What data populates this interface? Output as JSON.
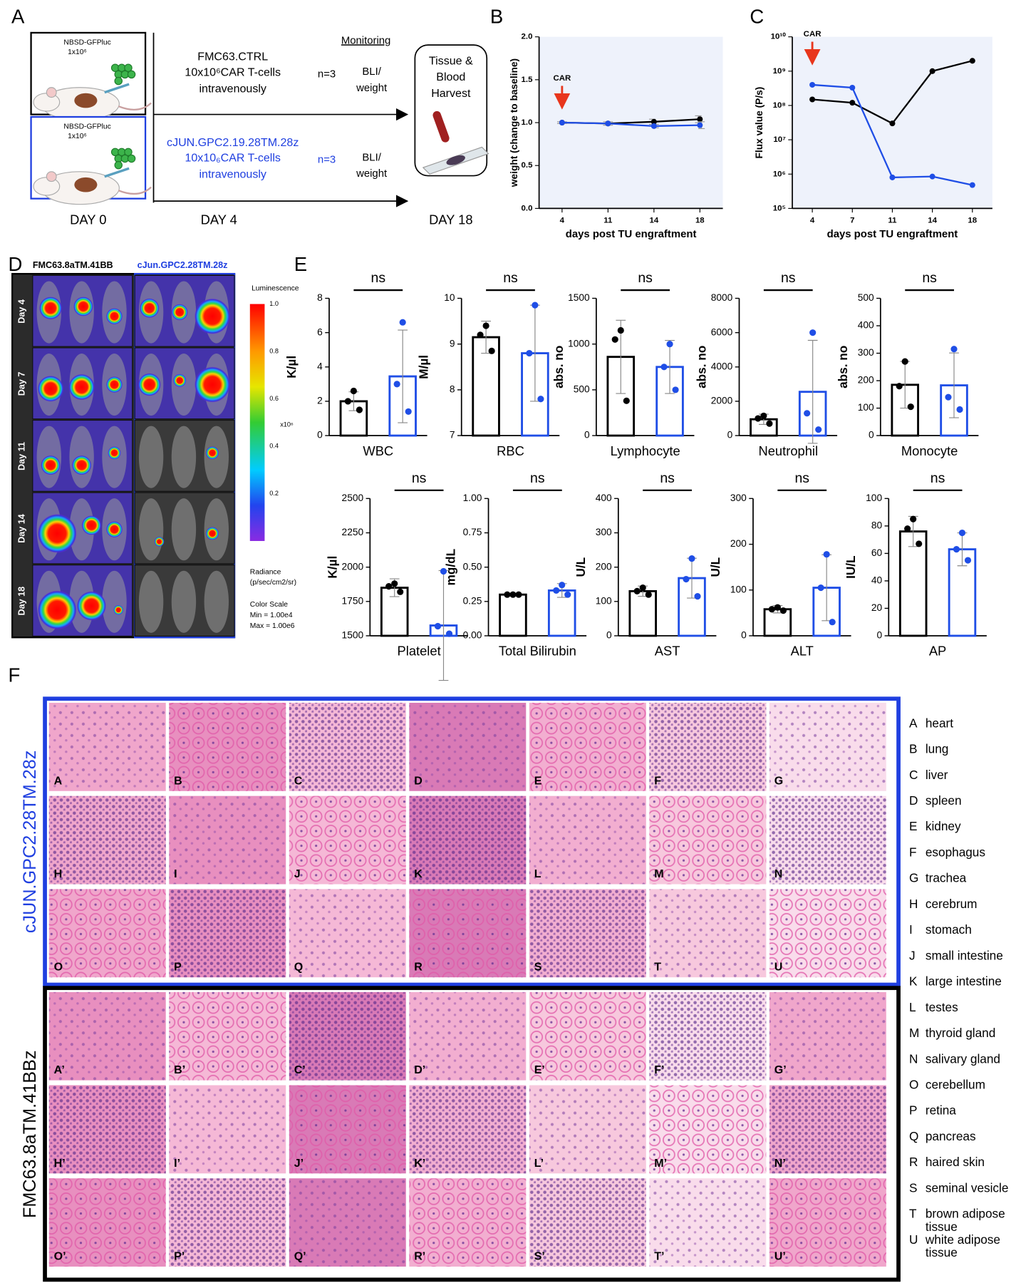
{
  "panels": [
    "A",
    "B",
    "C",
    "D",
    "E",
    "F"
  ],
  "panel_a": {
    "groups": [
      {
        "cells": "NBSD-GFPluc",
        "dose": "1x10⁶",
        "car": "FMC63.CTRL",
        "car_dose": "10x10⁶CAR T-cells",
        "route": "intravenously",
        "n": "n=3",
        "monitoring": [
          "BLI/",
          "weight"
        ]
      },
      {
        "cells": "NBSD-GFPluc",
        "dose": "1x10⁶",
        "car": "cJUN.GPC2.19.28TM.28z",
        "car_dose": "10x10₆CAR T-cells",
        "route": "intravenously",
        "n": "n=3",
        "monitoring": [
          "BLI/",
          "weight"
        ]
      }
    ],
    "monitoring_title": "Monitoring",
    "harvest": [
      "Tissue &",
      "Blood",
      "Harvest"
    ],
    "days": [
      "DAY 0",
      "DAY 4",
      "DAY 18"
    ]
  },
  "chart_data": [
    {
      "type": "line",
      "categories": [
        "4",
        "11",
        "14",
        "18"
      ],
      "xlabel": "days post TU engraftment",
      "ylabel": "weight (change to baseline)",
      "ylim": [
        0,
        2
      ],
      "yticks": [
        {
          "value": 0,
          "label": "0.0"
        },
        {
          "value": 0.5,
          "label": "0.5"
        },
        {
          "value": 1,
          "label": "1.0"
        },
        {
          "value": 1.5,
          "label": "1.5"
        },
        {
          "value": 2,
          "label": "2.0"
        }
      ],
      "annotation": "CAR",
      "series": [
        {
          "color": "#000000",
          "values": [
            1.0,
            0.99,
            1.01,
            1.04
          ],
          "errors": [
            0.01,
            0.02,
            0.03,
            0.04
          ]
        },
        {
          "color": "#1f4ee6",
          "values": [
            1.0,
            0.99,
            0.96,
            0.97
          ],
          "errors": [
            0.01,
            0.02,
            0.02,
            0.04
          ]
        }
      ]
    },
    {
      "type": "line",
      "log_scale": true,
      "categories": [
        "4",
        "7",
        "11",
        "14",
        "18"
      ],
      "xlabel": "days post TU engraftment",
      "ylabel": "Flux value (P/s)",
      "ylim": [
        100000,
        10000000000
      ],
      "yticks": [
        {
          "value": 100000,
          "label": "10⁵"
        },
        {
          "value": 1000000,
          "label": "10⁶"
        },
        {
          "value": 10000000,
          "label": "10⁷"
        },
        {
          "value": 100000000,
          "label": "10⁸"
        },
        {
          "value": 1000000000,
          "label": "10⁹"
        },
        {
          "value": 10000000000,
          "label": "10¹⁰"
        }
      ],
      "annotation": "CAR",
      "series": [
        {
          "color": "#000000",
          "values": [
            150000000,
            120000000,
            30000000,
            1000000000,
            2000000000
          ]
        },
        {
          "color": "#1f4ee6",
          "values": [
            400000000,
            330000000,
            800000,
            850000,
            480000
          ]
        }
      ]
    },
    {
      "type": "bar",
      "categories": [
        "WBC"
      ],
      "ylabel": "K/µl",
      "annotation": "ns",
      "ylim": [
        0,
        8
      ],
      "yticks": [
        0,
        2,
        4,
        6,
        8
      ],
      "series": [
        {
          "color": "#000000",
          "values": [
            2.0
          ],
          "errors": [
            0.55
          ],
          "points": [
            2.6,
            2.0,
            1.5
          ]
        },
        {
          "color": "#1f4ee6",
          "values": [
            3.45
          ],
          "errors": [
            2.7
          ],
          "points": [
            6.6,
            3.0,
            1.4
          ]
        }
      ]
    },
    {
      "type": "bar",
      "categories": [
        "RBC"
      ],
      "ylabel": "M/µl",
      "annotation": "ns",
      "ylim": [
        7,
        10
      ],
      "yticks": [
        7,
        8,
        9,
        10
      ],
      "series": [
        {
          "color": "#000000",
          "values": [
            9.15
          ],
          "errors": [
            0.35
          ],
          "points": [
            9.4,
            9.2,
            8.85
          ]
        },
        {
          "color": "#1f4ee6",
          "values": [
            8.8
          ],
          "errors": [
            1.05
          ],
          "points": [
            9.85,
            8.8,
            7.8
          ]
        }
      ]
    },
    {
      "type": "bar",
      "categories": [
        "Lymphocyte"
      ],
      "ylabel": "abs. no",
      "annotation": "ns",
      "ylim": [
        0,
        1500
      ],
      "yticks": [
        0,
        500,
        1000,
        1500
      ],
      "series": [
        {
          "color": "#000000",
          "values": [
            860
          ],
          "errors": [
            400
          ],
          "points": [
            1150,
            1050,
            380
          ]
        },
        {
          "color": "#1f4ee6",
          "values": [
            750
          ],
          "errors": [
            290
          ],
          "points": [
            1000,
            750,
            500
          ]
        }
      ]
    },
    {
      "type": "bar",
      "categories": [
        "Neutrophil"
      ],
      "ylabel": "abs. no",
      "annotation": "ns",
      "ylim": [
        0,
        8000
      ],
      "yticks": [
        0,
        2000,
        4000,
        6000,
        8000
      ],
      "series": [
        {
          "color": "#000000",
          "values": [
            950
          ],
          "errors": [
            300
          ],
          "points": [
            1150,
            1000,
            700
          ]
        },
        {
          "color": "#1f4ee6",
          "values": [
            2550
          ],
          "errors": [
            3000
          ],
          "points": [
            6000,
            1300,
            350
          ]
        }
      ]
    },
    {
      "type": "bar",
      "categories": [
        "Monocyte"
      ],
      "ylabel": "abs. no",
      "annotation": "ns",
      "ylim": [
        0,
        500
      ],
      "yticks": [
        0,
        100,
        200,
        300,
        400,
        500
      ],
      "series": [
        {
          "color": "#000000",
          "values": [
            185
          ],
          "errors": [
            85
          ],
          "points": [
            270,
            180,
            105
          ]
        },
        {
          "color": "#1f4ee6",
          "values": [
            183
          ],
          "errors": [
            118
          ],
          "points": [
            315,
            140,
            95
          ]
        }
      ]
    },
    {
      "type": "bar",
      "categories": [
        "Platelet"
      ],
      "ylabel": "K/µl",
      "annotation": "ns",
      "ylim": [
        1500,
        2500
      ],
      "yticks": [
        1500,
        1750,
        2000,
        2250,
        2500
      ],
      "series": [
        {
          "color": "#000000",
          "values": [
            1850
          ],
          "errors": [
            65
          ],
          "points": [
            1880,
            1860,
            1820
          ]
        },
        {
          "color": "#1f4ee6",
          "values": [
            1575
          ],
          "errors": [
            400
          ],
          "points": [
            1970,
            1570,
            1515
          ]
        }
      ]
    },
    {
      "type": "bar",
      "categories": [
        "Total Bilirubin"
      ],
      "ylabel": "mg/dL",
      "annotation": "ns",
      "ylim": [
        0,
        1
      ],
      "yticks": [
        {
          "value": 0,
          "label": "0.00"
        },
        {
          "value": 0.25,
          "label": "0.25"
        },
        {
          "value": 0.5,
          "label": "0.50"
        },
        {
          "value": 0.75,
          "label": "0.75"
        },
        {
          "value": 1,
          "label": "1.00"
        }
      ],
      "series": [
        {
          "color": "#000000",
          "values": [
            0.3
          ],
          "errors": [
            0.01
          ],
          "points": [
            0.3,
            0.3,
            0.3
          ]
        },
        {
          "color": "#1f4ee6",
          "values": [
            0.33
          ],
          "errors": [
            0.05
          ],
          "points": [
            0.37,
            0.33,
            0.3
          ]
        }
      ]
    },
    {
      "type": "bar",
      "categories": [
        "AST"
      ],
      "ylabel": "U/L",
      "annotation": "ns",
      "ylim": [
        0,
        400
      ],
      "yticks": [
        0,
        100,
        200,
        300,
        400
      ],
      "series": [
        {
          "color": "#000000",
          "values": [
            130
          ],
          "errors": [
            15
          ],
          "points": [
            140,
            130,
            120
          ]
        },
        {
          "color": "#1f4ee6",
          "values": [
            168
          ],
          "errors": [
            58
          ],
          "points": [
            225,
            165,
            115
          ]
        }
      ]
    },
    {
      "type": "bar",
      "categories": [
        "ALT"
      ],
      "ylabel": "U/L",
      "annotation": "ns",
      "ylim": [
        0,
        300
      ],
      "yticks": [
        0,
        100,
        200,
        300
      ],
      "series": [
        {
          "color": "#000000",
          "values": [
            58
          ],
          "errors": [
            8
          ],
          "points": [
            62,
            58,
            55
          ]
        },
        {
          "color": "#1f4ee6",
          "values": [
            105
          ],
          "errors": [
            72
          ],
          "points": [
            178,
            105,
            30
          ]
        }
      ]
    },
    {
      "type": "bar",
      "categories": [
        "AP"
      ],
      "ylabel": "IU/L",
      "annotation": "ns",
      "ylim": [
        0,
        100
      ],
      "yticks": [
        0,
        20,
        40,
        60,
        80,
        100
      ],
      "series": [
        {
          "color": "#000000",
          "values": [
            76
          ],
          "errors": [
            11
          ],
          "points": [
            85,
            78,
            67
          ]
        },
        {
          "color": "#1f4ee6",
          "values": [
            63
          ],
          "errors": [
            12
          ],
          "points": [
            75,
            63,
            55
          ]
        }
      ]
    }
  ],
  "panel_d": {
    "columns": [
      "FMC63.8aTM.41BB",
      "cJun.GPC2.28TM.28z"
    ],
    "rows": [
      "Day 4",
      "Day 7",
      "Day 11",
      "Day 14",
      "Day 18"
    ],
    "scale_title": "Luminescence",
    "scale_ticks": [
      "1.0",
      "0.8",
      "0.6",
      "0.4",
      "0.2"
    ],
    "scale_unit": "x10⁶",
    "radiance": [
      "Radiance",
      "(p/sec/cm2/sr)"
    ],
    "color_scale": [
      "Color Scale",
      "Min = 1.00e4",
      "Max = 1.00e6"
    ]
  },
  "panel_f": {
    "groups": [
      "cJUN.GPC2.28TM.28z",
      "FMC63.8aTM.41BBz"
    ],
    "tiles": [
      [
        "A",
        "B",
        "C",
        "D",
        "E",
        "F",
        "G",
        "H",
        "I",
        "J",
        "K",
        "L",
        "M",
        "N",
        "O",
        "P",
        "Q",
        "R",
        "S",
        "T",
        "U"
      ],
      [
        "A’",
        "B’",
        "C’",
        "D’",
        "E’",
        "F’",
        "G’",
        "H’",
        "I’",
        "J’",
        "K’",
        "L’",
        "M’",
        "N’",
        "O’",
        "P’",
        "Q’",
        "R’",
        "S’",
        "T’",
        "U’"
      ]
    ],
    "legend": [
      {
        "letter": "A",
        "tissue": [
          "heart"
        ]
      },
      {
        "letter": "B",
        "tissue": [
          "lung"
        ]
      },
      {
        "letter": "C",
        "tissue": [
          "liver"
        ]
      },
      {
        "letter": "D",
        "tissue": [
          "spleen"
        ]
      },
      {
        "letter": "E",
        "tissue": [
          "kidney"
        ]
      },
      {
        "letter": "F",
        "tissue": [
          "esophagus"
        ]
      },
      {
        "letter": "G",
        "tissue": [
          "trachea"
        ]
      },
      {
        "letter": "H",
        "tissue": [
          "cerebrum"
        ]
      },
      {
        "letter": "I",
        "tissue": [
          "stomach"
        ]
      },
      {
        "letter": "J",
        "tissue": [
          "small intestine"
        ]
      },
      {
        "letter": "K",
        "tissue": [
          "large intestine"
        ]
      },
      {
        "letter": "L",
        "tissue": [
          "testes"
        ]
      },
      {
        "letter": "M",
        "tissue": [
          "thyroid gland"
        ]
      },
      {
        "letter": "N",
        "tissue": [
          "salivary gland"
        ]
      },
      {
        "letter": "O",
        "tissue": [
          "cerebellum"
        ]
      },
      {
        "letter": "P",
        "tissue": [
          "retina"
        ]
      },
      {
        "letter": "Q",
        "tissue": [
          "pancreas"
        ]
      },
      {
        "letter": "R",
        "tissue": [
          "haired skin"
        ]
      },
      {
        "letter": "S",
        "tissue": [
          "seminal vesicle"
        ]
      },
      {
        "letter": "T",
        "tissue": [
          "brown adipose",
          "tissue"
        ]
      },
      {
        "letter": "U",
        "tissue": [
          "white adipose",
          "tissue"
        ]
      }
    ]
  }
}
